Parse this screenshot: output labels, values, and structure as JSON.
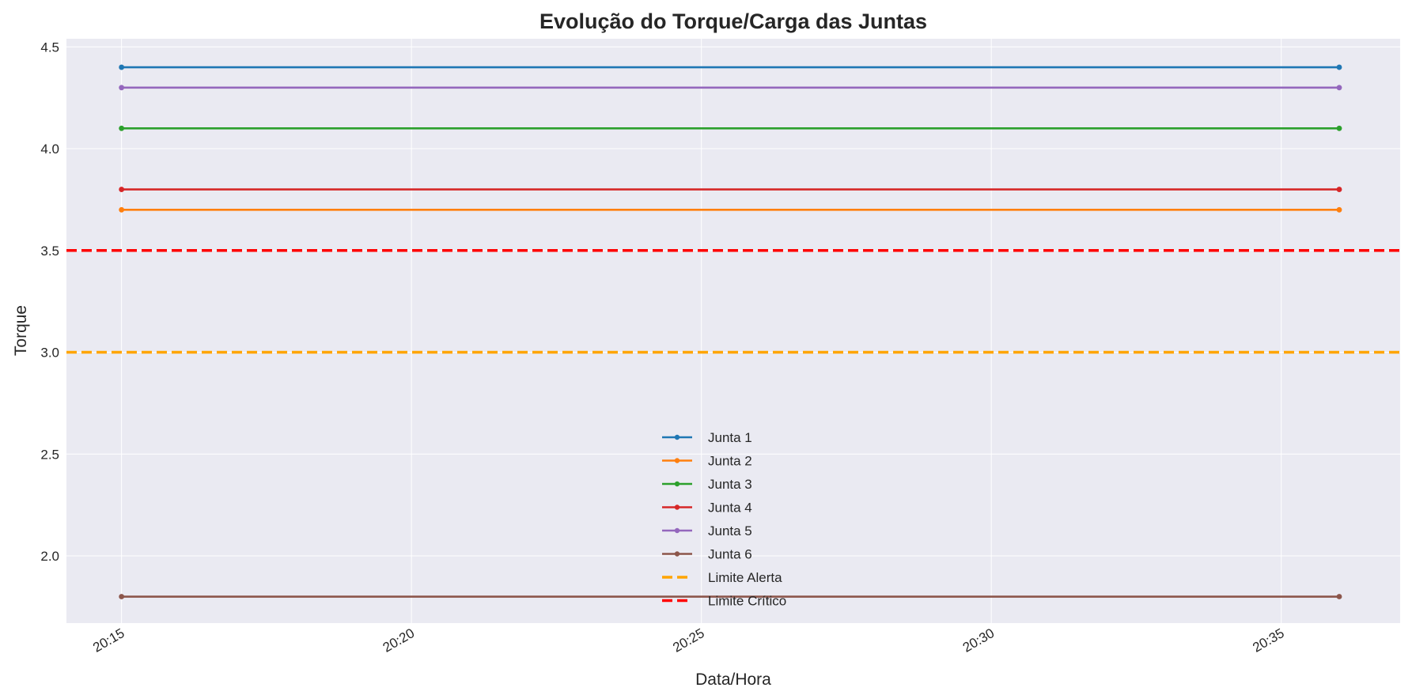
{
  "chart_data": {
    "type": "line",
    "title": "Evolução do Torque/Carga das Juntas",
    "xlabel": "Data/Hora",
    "ylabel": "Torque",
    "x": [
      "20:15",
      "20:36"
    ],
    "x_ticks": [
      "20:15",
      "20:20",
      "20:25",
      "20:30",
      "20:35"
    ],
    "xlim": [
      "20:14",
      "20:37"
    ],
    "ylim": [
      1.67,
      4.54
    ],
    "y_ticks": [
      "2.0",
      "2.5",
      "3.0",
      "3.5",
      "4.0",
      "4.5"
    ],
    "grid": true,
    "legend_position": "lower center",
    "series": [
      {
        "name": "Junta 1",
        "values": [
          4.4,
          4.4
        ],
        "color": "#1f77b4",
        "marker": "circle"
      },
      {
        "name": "Junta 2",
        "values": [
          3.7,
          3.7
        ],
        "color": "#ff7f0e",
        "marker": "circle"
      },
      {
        "name": "Junta 3",
        "values": [
          4.1,
          4.1
        ],
        "color": "#2ca02c",
        "marker": "circle"
      },
      {
        "name": "Junta 4",
        "values": [
          3.8,
          3.8
        ],
        "color": "#d62728",
        "marker": "circle"
      },
      {
        "name": "Junta 5",
        "values": [
          4.3,
          4.3
        ],
        "color": "#9467bd",
        "marker": "circle"
      },
      {
        "name": "Junta 6",
        "values": [
          1.8,
          1.8
        ],
        "color": "#8c564b",
        "marker": "circle"
      }
    ],
    "reference_lines": [
      {
        "name": "Limite Alerta",
        "value": 3.0,
        "color": "#ffa500",
        "style": "dashed"
      },
      {
        "name": "Limite Crítico",
        "value": 3.5,
        "color": "#ff0000",
        "style": "dashed"
      }
    ],
    "colors": {
      "plot_background": "#eaeaf2",
      "grid": "#ffffff",
      "text": "#262626"
    }
  }
}
